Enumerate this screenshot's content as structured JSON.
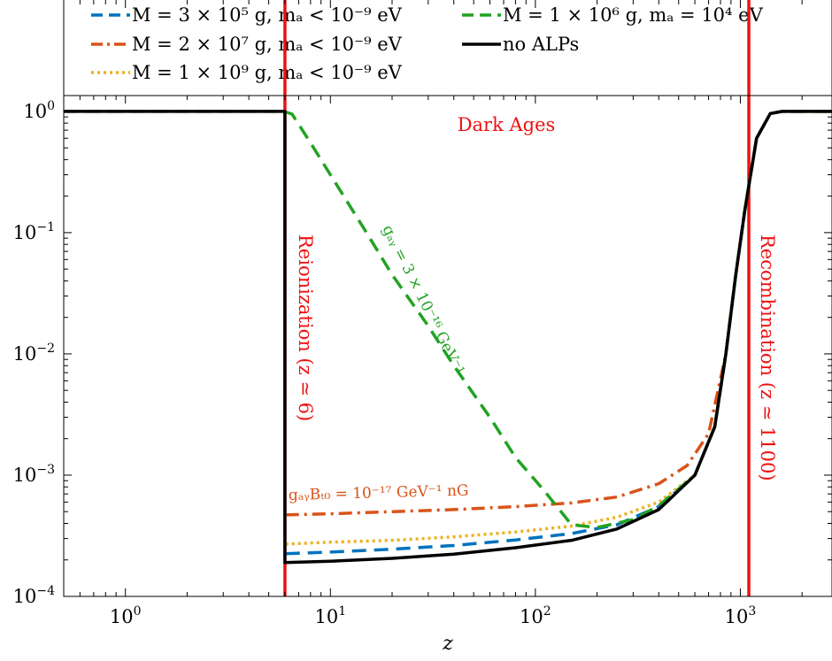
{
  "chart_data": {
    "type": "line",
    "title": "",
    "xlabel": "z",
    "ylabel": "",
    "xscale": "log",
    "yscale": "log",
    "xlim": [
      0.5,
      2800
    ],
    "ylim": [
      0.0001,
      1.35
    ],
    "x_ticks": [
      {
        "value": 1,
        "base": "10",
        "exp": "0"
      },
      {
        "value": 10,
        "base": "10",
        "exp": "1"
      },
      {
        "value": 100,
        "base": "10",
        "exp": "2"
      },
      {
        "value": 1000,
        "base": "10",
        "exp": "3"
      }
    ],
    "y_ticks": [
      {
        "value": 1,
        "base": "10",
        "exp": "0"
      },
      {
        "value": 0.1,
        "base": "10",
        "exp": "−1"
      },
      {
        "value": 0.01,
        "base": "10",
        "exp": "−2"
      },
      {
        "value": 0.001,
        "base": "10",
        "exp": "−3"
      },
      {
        "value": 0.0001,
        "base": "10",
        "exp": "−4"
      }
    ],
    "grid": false,
    "legend_position": "top, above plot",
    "legend": [
      {
        "label": "M = 3 × 10⁵ g, mₐ < 10⁻⁹ eV",
        "color": "#0072BD",
        "dash": "long-dash"
      },
      {
        "label": "M = 1 × 10⁶ g, mₐ = 10⁴ eV",
        "color": "#21A321",
        "dash": "long-dash"
      },
      {
        "label": "M = 2 × 10⁷ g, mₐ < 10⁻⁹ eV",
        "color": "#D95319",
        "dash": "dash-dot"
      },
      {
        "label": "no ALPs",
        "color": "#000000",
        "dash": "solid"
      },
      {
        "label": "M = 1 × 10⁹ g, mₐ < 10⁻⁹ eV",
        "color": "#EDB120",
        "dash": "dotted"
      }
    ],
    "series": [
      {
        "name": "M = 3 × 10⁵ g, mₐ < 10⁻⁹ eV",
        "color": "#0072BD",
        "dash": "long-dash",
        "points": [
          [
            6.05,
            0.000225
          ],
          [
            10,
            0.000232
          ],
          [
            20,
            0.000245
          ],
          [
            40,
            0.000263
          ],
          [
            80,
            0.000292
          ],
          [
            150,
            0.00033
          ],
          [
            250,
            0.00039
          ],
          [
            400,
            0.00055
          ],
          [
            600,
            0.001
          ],
          [
            750,
            0.0025
          ],
          [
            850,
            0.01
          ],
          [
            950,
            0.045
          ],
          [
            1050,
            0.15
          ],
          [
            1200,
            0.6
          ],
          [
            1400,
            0.96
          ],
          [
            1600,
            1
          ],
          [
            2800,
            1
          ]
        ]
      },
      {
        "name": "M = 1 × 10⁶ g, mₐ = 10⁴ eV",
        "color": "#21A321",
        "dash": "long-dash",
        "points": [
          [
            0.5,
            1
          ],
          [
            5.9,
            1
          ],
          [
            6.5,
            0.95
          ],
          [
            8,
            0.55
          ],
          [
            10,
            0.3
          ],
          [
            15,
            0.1
          ],
          [
            20,
            0.045
          ],
          [
            30,
            0.017
          ],
          [
            40,
            0.008
          ],
          [
            60,
            0.003
          ],
          [
            80,
            0.0014
          ],
          [
            110,
            0.00075
          ],
          [
            150,
            0.00039
          ],
          [
            200,
            0.00037
          ],
          [
            300,
            0.00043
          ],
          [
            400,
            0.00056
          ],
          [
            600,
            0.001
          ],
          [
            750,
            0.0025
          ],
          [
            850,
            0.01
          ],
          [
            950,
            0.045
          ],
          [
            1050,
            0.15
          ],
          [
            1200,
            0.6
          ],
          [
            1400,
            0.96
          ],
          [
            1600,
            1
          ],
          [
            2800,
            1
          ]
        ]
      },
      {
        "name": "M = 2 × 10⁷ g, mₐ < 10⁻⁹ eV",
        "color": "#D95319",
        "dash": "dash-dot",
        "points": [
          [
            6.05,
            0.00047
          ],
          [
            10,
            0.00048
          ],
          [
            20,
            0.0005
          ],
          [
            40,
            0.00052
          ],
          [
            80,
            0.00055
          ],
          [
            150,
            0.00059
          ],
          [
            250,
            0.00066
          ],
          [
            400,
            0.00085
          ],
          [
            550,
            0.0012
          ],
          [
            700,
            0.0022
          ],
          [
            850,
            0.01
          ],
          [
            950,
            0.045
          ],
          [
            1050,
            0.15
          ],
          [
            1200,
            0.6
          ],
          [
            1400,
            0.96
          ],
          [
            1600,
            1
          ],
          [
            2800,
            1
          ]
        ]
      },
      {
        "name": "no ALPs",
        "color": "#000000",
        "dash": "solid",
        "points": [
          [
            0.5,
            1
          ],
          [
            6.0,
            1
          ],
          [
            6.0,
            0.00019
          ],
          [
            10,
            0.000195
          ],
          [
            20,
            0.000206
          ],
          [
            40,
            0.000223
          ],
          [
            80,
            0.000252
          ],
          [
            150,
            0.00029
          ],
          [
            250,
            0.00036
          ],
          [
            400,
            0.00052
          ],
          [
            600,
            0.001
          ],
          [
            750,
            0.0025
          ],
          [
            850,
            0.01
          ],
          [
            950,
            0.045
          ],
          [
            1050,
            0.15
          ],
          [
            1200,
            0.6
          ],
          [
            1400,
            0.96
          ],
          [
            1600,
            1
          ],
          [
            2800,
            1
          ]
        ]
      },
      {
        "name": "M = 1 × 10⁹ g, mₐ < 10⁻⁹ eV",
        "color": "#EDB120",
        "dash": "dotted",
        "points": [
          [
            6.05,
            0.00027
          ],
          [
            10,
            0.00028
          ],
          [
            20,
            0.00029
          ],
          [
            40,
            0.00031
          ],
          [
            80,
            0.00034
          ],
          [
            150,
            0.00038
          ],
          [
            250,
            0.00045
          ],
          [
            400,
            0.0006
          ],
          [
            600,
            0.001
          ],
          [
            750,
            0.0025
          ],
          [
            850,
            0.01
          ],
          [
            950,
            0.045
          ],
          [
            1050,
            0.15
          ],
          [
            1200,
            0.6
          ],
          [
            1400,
            0.96
          ],
          [
            1600,
            1
          ],
          [
            2800,
            1
          ]
        ]
      }
    ],
    "vertical_lines": [
      {
        "x": 6,
        "color": "#EE1111"
      },
      {
        "x": 1100,
        "color": "#EE1111"
      }
    ],
    "annotations": {
      "dark_ages": "Dark Ages",
      "reionization": "Reionization (z ≃ 6)",
      "recombination": "Recombination (z ≃ 1100)",
      "green_coupling": "gₐᵧ = 3 × 10⁻¹⁶ GeV⁻¹",
      "orange_coupling": "gₐᵧBₜ₀ = 10⁻¹⁷ GeV⁻¹ nG"
    },
    "colors": {
      "blue": "#0072BD",
      "green": "#21A321",
      "orange": "#D95319",
      "yellow": "#EDB120",
      "black": "#000000",
      "red": "#EE1111"
    }
  }
}
